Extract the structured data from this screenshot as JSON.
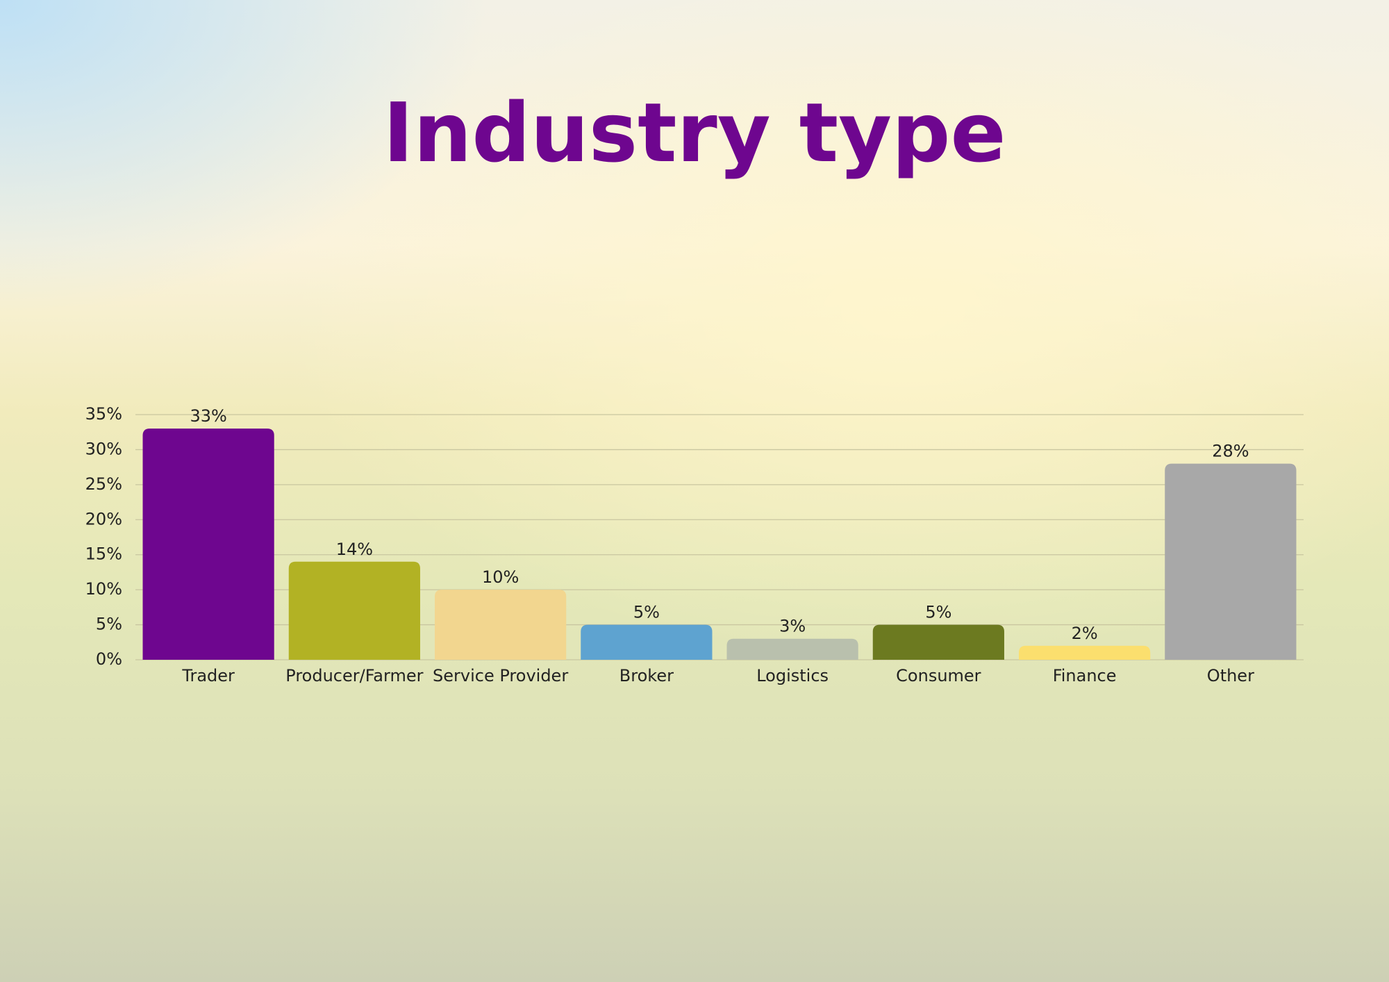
{
  "chart_data": {
    "type": "bar",
    "title": "Industry type",
    "categories": [
      "Trader",
      "Producer/Farmer",
      "Service Provider",
      "Broker",
      "Logistics",
      "Consumer",
      "Finance",
      "Other"
    ],
    "values": [
      33,
      14,
      10,
      5,
      3,
      5,
      2,
      28
    ],
    "value_labels": [
      "33%",
      "14%",
      "10%",
      "5%",
      "3%",
      "5%",
      "2%",
      "28%"
    ],
    "colors": [
      "#6e068f",
      "#b2b224",
      "#f2d68f",
      "#5ea3d0",
      "#b9c0ad",
      "#6c7a20",
      "#fbdf6e",
      "#a8a8a8"
    ],
    "ylim": [
      0,
      35
    ],
    "yticks": [
      {
        "value": 0,
        "label": "0%"
      },
      {
        "value": 5,
        "label": "5%"
      },
      {
        "value": 10,
        "label": "10%"
      },
      {
        "value": 15,
        "label": "15%"
      },
      {
        "value": 20,
        "label": "20%"
      },
      {
        "value": 25,
        "label": "25%"
      },
      {
        "value": 30,
        "label": "30%"
      },
      {
        "value": 35,
        "label": "35%"
      }
    ],
    "grid": true
  }
}
